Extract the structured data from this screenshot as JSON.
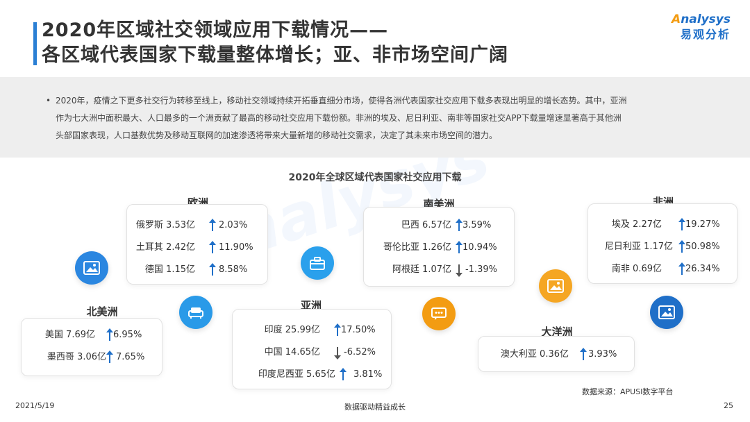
{
  "header": {
    "title_line1": "2020年区域社交领域应用下载情况——",
    "title_line2": "各区域代表国家下载量整体增长；亚、非市场空间广阔",
    "logo_en": "nalysys",
    "logo_en_o": "A",
    "logo_cn": "易观分析"
  },
  "summary": {
    "bullet": "•",
    "line1": "2020年，疫情之下更多社交行为转移至线上，移动社交领域持续开拓垂直细分市场，使得各洲代表国家社交应用下载多表现出明显的增长态势。其中，亚洲",
    "line2": "作为七大洲中面积最大、人口最多的一个洲贡献了最高的移动社交应用下载份额。非洲的埃及、尼日利亚、南非等国家社交APP下载量增速显著高于其他洲",
    "line3": "头部国家表现，人口基数优势及移动互联网的加速渗透将带来大量新增的移动社交需求，决定了其未来市场空间的潜力。"
  },
  "chart_title": "2020年全球区域代表国家社交应用下载",
  "regions": {
    "europe": {
      "label": "欧洲",
      "rows": [
        {
          "name": "俄罗斯 3.53亿",
          "growth": "2.03%",
          "dir": "up"
        },
        {
          "name": "土耳其 2.42亿",
          "growth": "11.90%",
          "dir": "up"
        },
        {
          "name": "德国 1.15亿",
          "growth": "8.58%",
          "dir": "up"
        }
      ]
    },
    "north_america": {
      "label": "北美洲",
      "rows": [
        {
          "name": "美国 7.69亿",
          "growth": "6.95%",
          "dir": "up"
        },
        {
          "name": "墨西哥 3.06亿",
          "growth": "7.65%",
          "dir": "up"
        }
      ]
    },
    "asia": {
      "label": "亚洲",
      "rows": [
        {
          "name": "印度 25.99亿",
          "growth": "17.50%",
          "dir": "up"
        },
        {
          "name": "中国 14.65亿",
          "growth": "-6.52%",
          "dir": "down"
        },
        {
          "name": "印度尼西亚 5.65亿",
          "growth": "3.81%",
          "dir": "up"
        }
      ]
    },
    "south_america": {
      "label": "南美洲",
      "rows": [
        {
          "name": "巴西 6.57亿",
          "growth": "3.59%",
          "dir": "up"
        },
        {
          "name": "哥伦比亚 1.26亿",
          "growth": "10.94%",
          "dir": "up"
        },
        {
          "name": "阿根廷 1.07亿",
          "growth": "-1.39%",
          "dir": "down"
        }
      ]
    },
    "oceania": {
      "label": "大洋洲",
      "rows": [
        {
          "name": "澳大利亚 0.36亿",
          "growth": "3.93%",
          "dir": "up"
        }
      ]
    },
    "africa": {
      "label": "非洲",
      "rows": [
        {
          "name": "埃及 2.27亿",
          "growth": "19.27%",
          "dir": "up"
        },
        {
          "name": "尼日利亚 1.17亿",
          "growth": "50.98%",
          "dir": "up"
        },
        {
          "name": "南非 0.69亿",
          "growth": "26.34%",
          "dir": "up"
        }
      ]
    }
  },
  "icons": {
    "image_1": {
      "name": "image-icon",
      "color": "#2a86e0"
    },
    "sofa": {
      "name": "sofa-icon",
      "color": "#2a9ae8"
    },
    "briefcase": {
      "name": "briefcase-icon",
      "color": "#2aa0ec"
    },
    "chat": {
      "name": "chat-icon",
      "color": "#f39c12"
    },
    "image_2": {
      "name": "image-icon",
      "color": "#f5a623"
    },
    "image_3": {
      "name": "image-icon",
      "color": "#1f6fc8"
    }
  },
  "source": "数据来源：APUSI数字平台",
  "footer": {
    "date": "2021/5/19",
    "slogan": "数据驱动精益成长",
    "page": "25"
  }
}
